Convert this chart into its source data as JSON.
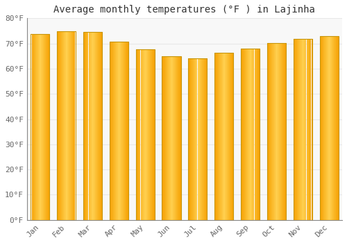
{
  "title": "Average monthly temperatures (°F ) in Lajinha",
  "months": [
    "Jan",
    "Feb",
    "Mar",
    "Apr",
    "May",
    "Jun",
    "Jul",
    "Aug",
    "Sep",
    "Oct",
    "Nov",
    "Dec"
  ],
  "values": [
    73.8,
    74.8,
    74.5,
    70.7,
    67.6,
    64.9,
    64.2,
    66.3,
    68.0,
    70.3,
    71.8,
    72.8
  ],
  "bar_color_center": "#FFD050",
  "bar_color_edge": "#F5A000",
  "bar_border_color": "#C8960A",
  "ylim": [
    0,
    80
  ],
  "yticks": [
    0,
    10,
    20,
    30,
    40,
    50,
    60,
    70,
    80
  ],
  "ytick_labels": [
    "0°F",
    "10°F",
    "20°F",
    "30°F",
    "40°F",
    "50°F",
    "60°F",
    "70°F",
    "80°F"
  ],
  "background_color": "#FFFFFF",
  "plot_bg_color": "#F8F8F8",
  "grid_color": "#E8E8E8",
  "title_fontsize": 10,
  "tick_fontsize": 8,
  "tick_color": "#666666",
  "title_color": "#333333",
  "bar_width": 0.72,
  "n_gradient_steps": 40
}
